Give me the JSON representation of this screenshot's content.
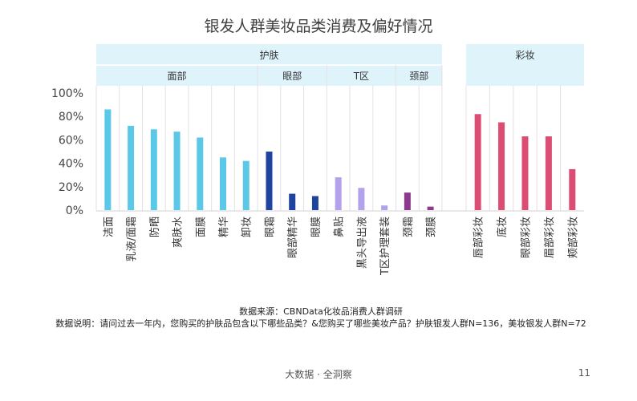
{
  "page": {
    "source_note": "数据来源：CBNData化妆品消费人群调研",
    "explanation_note": "数据说明：请问过去一年内，您购买的护肤品包含以下哪些品类？&您购买了哪些美妆产品？护肤银发人群N=136，美妆银发人群N=72",
    "footer": "大数据 · 全洞察",
    "page_number": "11"
  },
  "chart_data": {
    "type": "bar",
    "title": "银发人群美妆品类消费及偏好情况",
    "ylim": [
      0,
      100
    ],
    "yticks": [
      "0%",
      "20%",
      "40%",
      "60%",
      "80%",
      "100%"
    ],
    "grid": false,
    "categories": [
      "洁面",
      "乳液/面霜",
      "防晒",
      "爽肤水",
      "面膜",
      "精华",
      "卸妆",
      "眼霜",
      "眼部精华",
      "眼膜",
      "鼻贴",
      "黑头导出液",
      "T区护理套装",
      "颈霜",
      "颈膜",
      "唇部彩妆",
      "底妆",
      "眼部彩妆",
      "眉部彩妆",
      "颊部彩妆"
    ],
    "values": [
      86,
      72,
      69,
      67,
      62,
      45,
      42,
      50,
      14,
      12,
      28,
      19,
      4,
      15,
      3,
      82,
      75,
      63,
      63,
      35
    ],
    "colors": [
      "#5bc8e8",
      "#5bc8e8",
      "#5bc8e8",
      "#5bc8e8",
      "#5bc8e8",
      "#5bc8e8",
      "#5bc8e8",
      "#1e44a0",
      "#1e44a0",
      "#1e44a0",
      "#b3a1ec",
      "#b3a1ec",
      "#b3a1ec",
      "#8b3a8c",
      "#8b3a8c",
      "#dc4d74",
      "#dc4d74",
      "#dc4d74",
      "#dc4d74",
      "#dc4d74"
    ],
    "group_headers": [
      {
        "label": "护肤",
        "from": 0,
        "to": 14
      },
      {
        "label": "彩妆",
        "from": 15,
        "to": 19
      }
    ],
    "subgroup_headers": [
      {
        "label": "面部",
        "from": 0,
        "to": 6
      },
      {
        "label": "眼部",
        "from": 7,
        "to": 9
      },
      {
        "label": "T区",
        "from": 10,
        "to": 12
      },
      {
        "label": "颈部",
        "from": 13,
        "to": 14
      }
    ],
    "header_color": "#dff3fb"
  }
}
